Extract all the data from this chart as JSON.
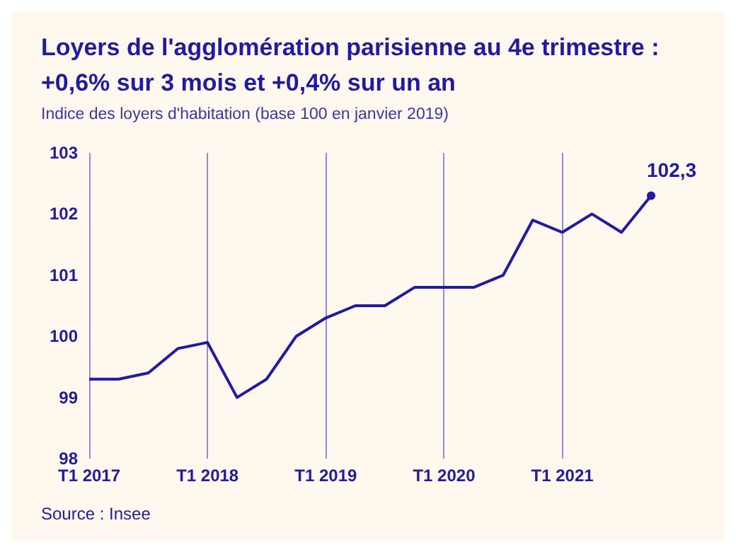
{
  "chart_data": {
    "type": "line",
    "title": "Loyers de l'agglomération parisienne au 4e trimestre :\n+0,6% sur 3 mois et +0,4% sur un an",
    "subtitle": "Indice des loyers d'habitation (base 100 en janvier 2019)",
    "categories": [
      "T1 2017",
      null,
      null,
      null,
      "T1 2018",
      null,
      null,
      null,
      "T1 2019",
      null,
      null,
      null,
      "T1 2020",
      null,
      null,
      null,
      "T1 2021",
      null,
      null,
      null
    ],
    "series": [
      {
        "color": "#1f1aa8",
        "values": [
          99.3,
          99.3,
          99.4,
          99.8,
          99.9,
          99.0,
          99.3,
          100.0,
          100.3,
          100.5,
          100.5,
          100.8,
          100.8,
          100.8,
          101.0,
          101.9,
          101.7,
          102.0,
          101.7,
          102.3
        ],
        "value_labels": [
          null,
          null,
          null,
          null,
          null,
          null,
          null,
          null,
          null,
          null,
          null,
          null,
          null,
          null,
          null,
          null,
          null,
          null,
          null,
          "102,3"
        ]
      }
    ],
    "ylim": [
      98,
      103
    ],
    "yticks": [
      98,
      99,
      100,
      101,
      102,
      103
    ],
    "grid": "x",
    "annotations": [
      "Source : Insee"
    ]
  }
}
